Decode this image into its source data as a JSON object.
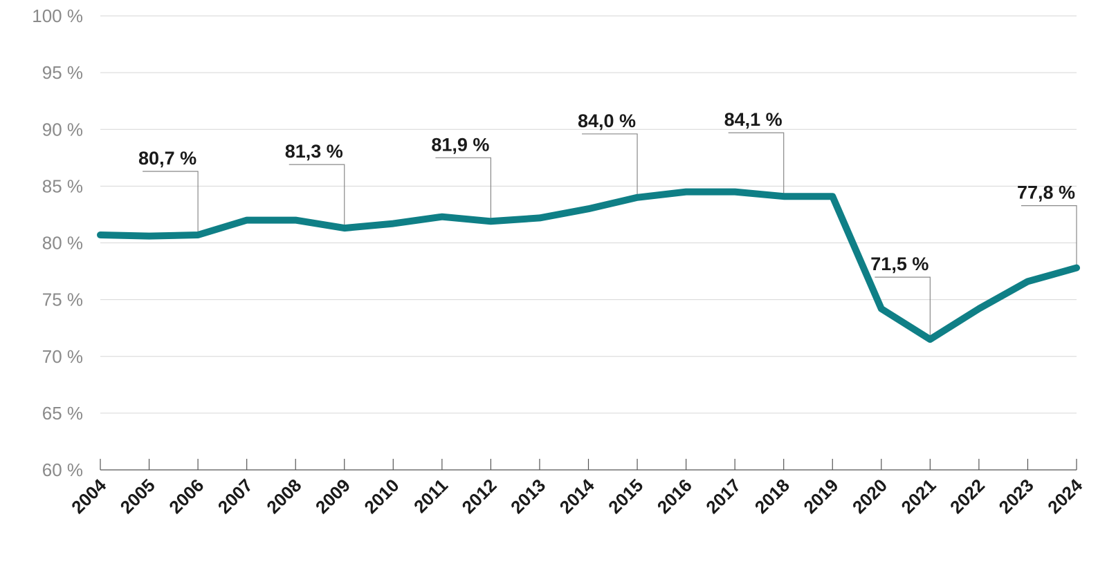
{
  "chart_data": {
    "type": "line",
    "x": [
      "2004",
      "2005",
      "2006",
      "2007",
      "2008",
      "2009",
      "2010",
      "2011",
      "2012",
      "2013",
      "2014",
      "2015",
      "2016",
      "2017",
      "2018",
      "2019",
      "2020",
      "2021",
      "2022",
      "2023",
      "2024"
    ],
    "series": [
      {
        "values": [
          80.7,
          80.6,
          80.7,
          82.0,
          82.0,
          81.3,
          81.7,
          82.3,
          81.9,
          82.2,
          83.0,
          84.0,
          84.5,
          84.5,
          84.1,
          84.1,
          74.2,
          71.5,
          74.2,
          76.6,
          77.8
        ],
        "color": "#0f7f86"
      }
    ],
    "ylim": [
      60,
      100
    ],
    "yticks": [
      60,
      65,
      70,
      75,
      80,
      85,
      90,
      95,
      100
    ],
    "ytick_labels": [
      "60 %",
      "65 %",
      "70 %",
      "75 %",
      "80 %",
      "85 %",
      "90 %",
      "95 %",
      "100 %"
    ],
    "annotations": [
      {
        "x": "2006",
        "text": "80,7 %"
      },
      {
        "x": "2009",
        "text": "81,3 %"
      },
      {
        "x": "2012",
        "text": "81,9 %"
      },
      {
        "x": "2015",
        "text": "84,0 %"
      },
      {
        "x": "2018",
        "text": "84,1 %"
      },
      {
        "x": "2021",
        "text": "71,5 %"
      },
      {
        "x": "2024",
        "text": "77,8 %"
      }
    ],
    "grid": true,
    "title": "",
    "xlabel": "",
    "ylabel": ""
  }
}
